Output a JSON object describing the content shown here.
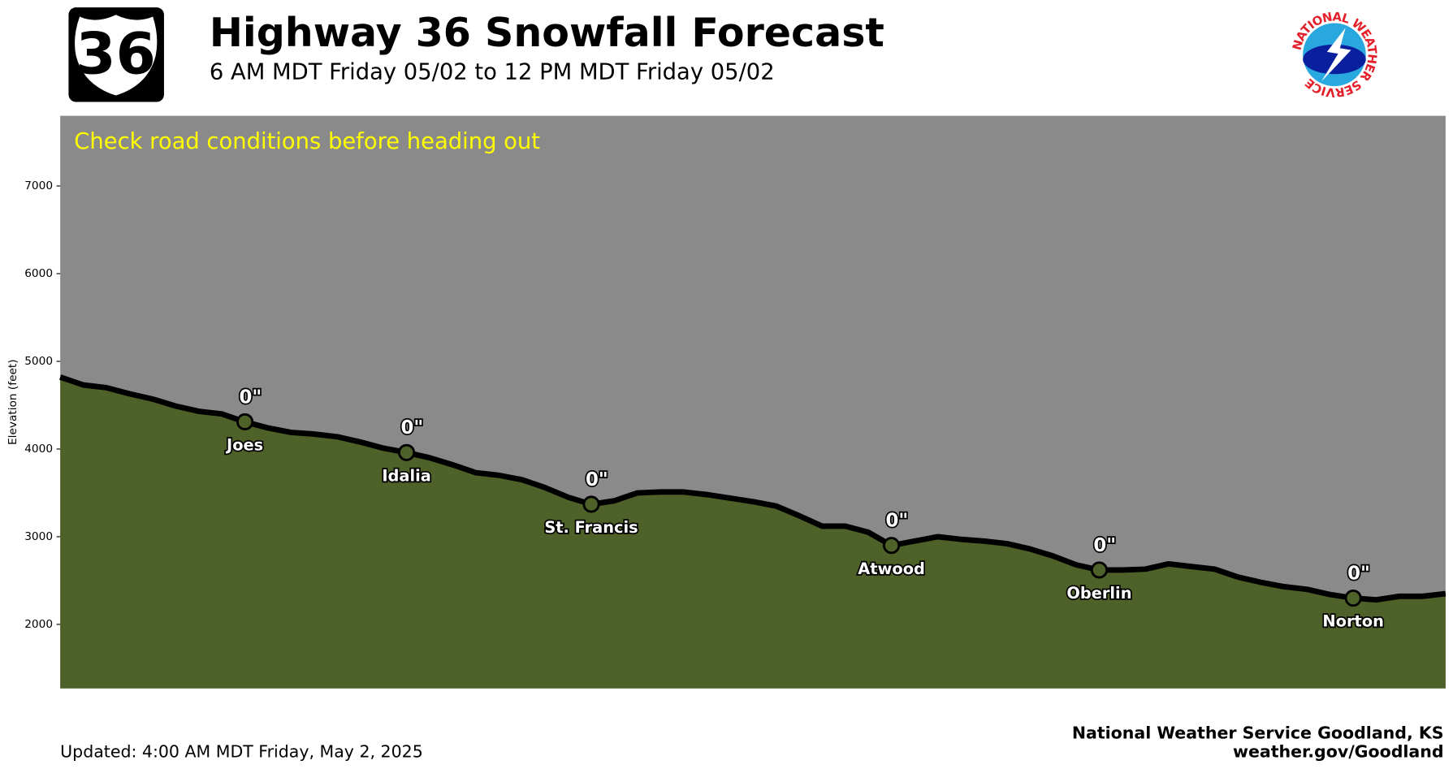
{
  "header": {
    "shield": "36",
    "logo": "NATIONAL WEATHER SERVICE"
  },
  "chart_data": {
    "type": "area",
    "title": "Highway 36 Snowfall Forecast",
    "subtitle": "6 AM MDT Friday 05/02 to 12 PM MDT Friday 05/02",
    "annotation": "Check road conditions before heading out",
    "ylabel": "Elevation (feet)",
    "ylim": [
      1270,
      7800
    ],
    "yticks": [
      2000,
      3000,
      4000,
      5000,
      6000,
      7000
    ],
    "color": "#4e6129",
    "line_color": "#000000",
    "background": "#8a8a8a",
    "annotation_color": "#ffff00",
    "categories": [
      null,
      null,
      null,
      null,
      null,
      null,
      null,
      null,
      "Joes",
      null,
      null,
      null,
      null,
      null,
      null,
      "Idalia",
      null,
      null,
      null,
      null,
      null,
      null,
      null,
      "St. Francis",
      null,
      null,
      null,
      null,
      null,
      null,
      null,
      null,
      null,
      null,
      null,
      null,
      "Atwood",
      null,
      null,
      null,
      null,
      null,
      null,
      null,
      null,
      "Oberlin",
      null,
      null,
      null,
      null,
      null,
      null,
      null,
      null,
      null,
      null,
      "Norton",
      null,
      null,
      null,
      null
    ],
    "values": [
      4820,
      4730,
      4700,
      4630,
      4570,
      4490,
      4430,
      4400,
      4310,
      4240,
      4190,
      4170,
      4140,
      4080,
      4010,
      3960,
      3900,
      3820,
      3730,
      3700,
      3650,
      3560,
      3450,
      3370,
      3410,
      3500,
      3510,
      3510,
      3480,
      3440,
      3400,
      3350,
      3240,
      3120,
      3120,
      3050,
      2900,
      2950,
      3000,
      2970,
      2950,
      2920,
      2860,
      2780,
      2680,
      2620,
      2620,
      2630,
      2690,
      2660,
      2630,
      2540,
      2480,
      2430,
      2400,
      2340,
      2300,
      2280,
      2320,
      2320,
      2350
    ],
    "snowfall": {
      "values": [
        null,
        null,
        null,
        null,
        null,
        null,
        null,
        null,
        0,
        null,
        null,
        null,
        null,
        null,
        null,
        0,
        null,
        null,
        null,
        null,
        null,
        null,
        null,
        0,
        null,
        null,
        null,
        null,
        null,
        null,
        null,
        null,
        null,
        null,
        null,
        null,
        0,
        null,
        null,
        null,
        null,
        null,
        null,
        null,
        null,
        0,
        null,
        null,
        null,
        null,
        null,
        null,
        null,
        null,
        null,
        null,
        0,
        null,
        null,
        null,
        null
      ],
      "value_labels": [
        null,
        null,
        null,
        null,
        null,
        null,
        null,
        null,
        "0\"",
        null,
        null,
        null,
        null,
        null,
        null,
        "0\"",
        null,
        null,
        null,
        null,
        null,
        null,
        null,
        "0\"",
        null,
        null,
        null,
        null,
        null,
        null,
        null,
        null,
        null,
        null,
        null,
        null,
        "0\"",
        null,
        null,
        null,
        null,
        null,
        null,
        null,
        null,
        "0\"",
        null,
        null,
        null,
        null,
        null,
        null,
        null,
        null,
        null,
        null,
        "0\"",
        null,
        null,
        null,
        null
      ]
    }
  },
  "footer": {
    "updated": "Updated: 4:00 AM MDT Friday, May 2, 2025",
    "office": "National Weather Service Goodland, KS",
    "website": "weather.gov/Goodland"
  }
}
